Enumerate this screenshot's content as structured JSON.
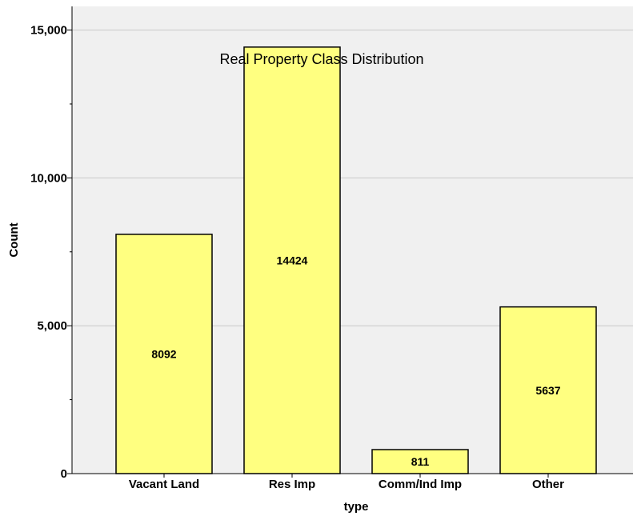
{
  "chart_data": {
    "type": "bar",
    "title": "Real Property Class Distribution",
    "xlabel": "type",
    "ylabel": "Count",
    "categories": [
      "Vacant Land",
      "Res Imp",
      "Comm/Ind Imp",
      "Other"
    ],
    "values": [
      8092,
      14424,
      811,
      5637
    ],
    "data_labels": [
      "8092",
      "14424",
      "811",
      "5637"
    ],
    "ylim": [
      0,
      15800
    ],
    "yticks": [
      0,
      5000,
      10000,
      15000
    ],
    "ytick_labels": [
      "0",
      "5,000",
      "10,000",
      "15,000"
    ],
    "minor_yticks": [
      2500,
      7500,
      12500
    ],
    "grid": true,
    "colors": {
      "plot_bg": "#f0f0f0",
      "bar_fill": "#ffff80",
      "bar_stroke": "#000000",
      "grid": "#c8c8c8"
    }
  }
}
